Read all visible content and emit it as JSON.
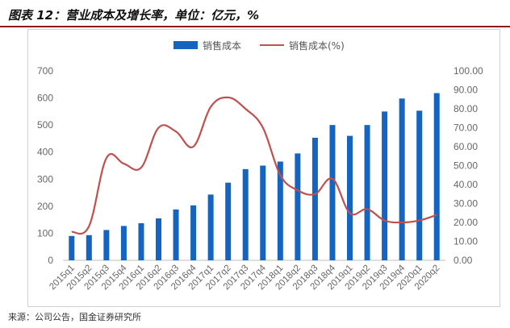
{
  "header": {
    "title": "图表 12：营业成本及增长率，单位：亿元，%"
  },
  "footer": {
    "source": "来源：公司公告，国金证券研究所"
  },
  "colors": {
    "bar": "#1565c0",
    "line": "#c0504d",
    "title_rule": "#8b1a1a"
  },
  "chart_data": {
    "type": "bar",
    "title": "",
    "categories": [
      "2015q1",
      "2015q2",
      "2015q3",
      "2015q4",
      "2016q1",
      "2016q2",
      "2016q3",
      "2016q4",
      "2017q1",
      "2017q2",
      "2017q3",
      "2017q4",
      "2018q1",
      "2018q2",
      "2018q3",
      "2018q4",
      "2019q1",
      "2019q2",
      "2019q3",
      "2019q4",
      "2020q1",
      "2020q2"
    ],
    "series": [
      {
        "name": "销售成本",
        "type": "bar",
        "axis": "left",
        "values": [
          90,
          93,
          112,
          127,
          137,
          155,
          188,
          203,
          243,
          287,
          337,
          350,
          365,
          395,
          453,
          500,
          460,
          500,
          550,
          598,
          553,
          618
        ]
      },
      {
        "name": "销售成本(%)",
        "type": "line",
        "axis": "right",
        "values": [
          15,
          18,
          54,
          51,
          49,
          70,
          68,
          60,
          81,
          86,
          80,
          70,
          45,
          37,
          35,
          43,
          25,
          27,
          21,
          20,
          21,
          24
        ]
      }
    ],
    "ylim_left": [
      0,
      700
    ],
    "ylim_right": [
      0,
      100
    ],
    "yticks_left": [
      "0",
      "100",
      "200",
      "300",
      "400",
      "500",
      "600",
      "700"
    ],
    "yticks_right": [
      "0.00",
      "10.00",
      "20.00",
      "30.00",
      "40.00",
      "50.00",
      "60.00",
      "70.00",
      "80.00",
      "90.00",
      "100.00"
    ],
    "grid": false,
    "legend_position": "top-center"
  }
}
